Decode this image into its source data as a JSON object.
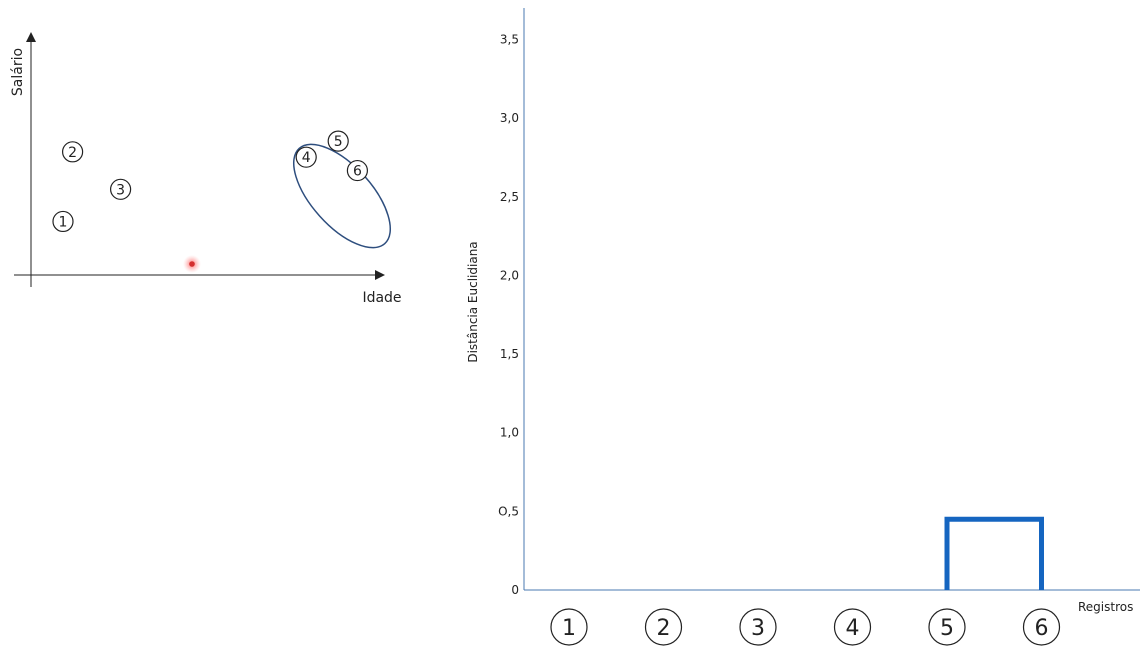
{
  "chart_data": [
    {
      "type": "scatter",
      "xlabel": "Idade",
      "ylabel": "Salário",
      "points": [
        {
          "label": "1",
          "x": 1.0,
          "y": 1.0
        },
        {
          "label": "2",
          "x": 1.3,
          "y": 2.3
        },
        {
          "label": "3",
          "x": 2.8,
          "y": 1.6
        },
        {
          "label": "4",
          "x": 8.6,
          "y": 2.2
        },
        {
          "label": "5",
          "x": 9.6,
          "y": 2.5
        },
        {
          "label": "6",
          "x": 10.2,
          "y": 1.95
        }
      ],
      "cluster": [
        "5",
        "6"
      ],
      "cluster_color": "#2e4e7e",
      "marker": {
        "x": 5.0,
        "y": 0.25,
        "color": "#e53935"
      },
      "xlim": [
        0,
        11
      ],
      "ylim": [
        0,
        4.5
      ]
    },
    {
      "type": "dendrogram",
      "xlabel": "Registros",
      "ylabel": "Distância Euclidiana",
      "categories": [
        "1",
        "2",
        "3",
        "4",
        "5",
        "6"
      ],
      "yticks": [
        "0",
        "O,5",
        "1,0",
        "1,5",
        "2,0",
        "2,5",
        "3,0",
        "3,5"
      ],
      "ytick_values": [
        0,
        0.5,
        1.0,
        1.5,
        2.0,
        2.5,
        3.0,
        3.5
      ],
      "ylim": [
        0,
        3.7
      ],
      "merges": [
        {
          "a": "5",
          "b": "6",
          "height": 0.45
        }
      ],
      "link_color": "#1565c0",
      "axis_color": "#4a78b0"
    }
  ]
}
